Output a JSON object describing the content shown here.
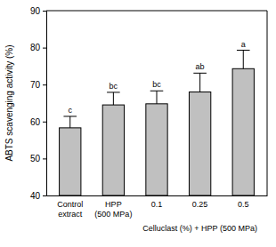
{
  "chart_data": {
    "type": "bar",
    "ylabel": "ABTS scavenging activity (%)",
    "categories": [
      "Control extract",
      "HPP (500 MPa)",
      "0.1",
      "0.25",
      "0.5"
    ],
    "values": [
      58.3,
      64.5,
      64.8,
      68.0,
      74.3
    ],
    "errors": [
      3.1,
      3.4,
      3.5,
      5.1,
      5.0
    ],
    "significance": [
      "c",
      "bc",
      "bc",
      "ab",
      "a"
    ],
    "annotations": [
      {
        "text": "Celluclast (%) + HPP (500 MPa)",
        "categories": [
          "0.1",
          "0.25",
          "0.5"
        ]
      }
    ],
    "color": "#c0c0c0",
    "ylim": [
      40,
      90
    ],
    "yticks": [
      40,
      50,
      60,
      70,
      80,
      90
    ],
    "grid": false
  }
}
